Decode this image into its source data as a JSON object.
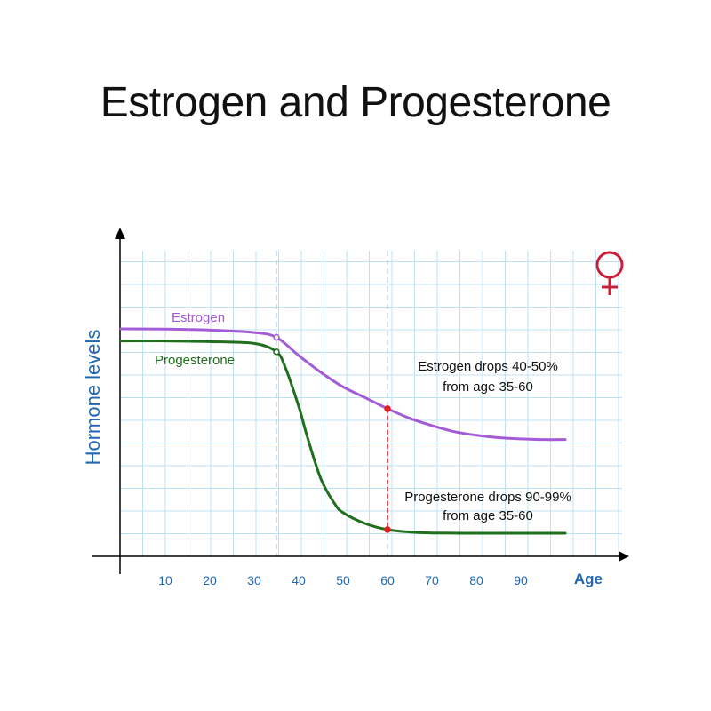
{
  "title": "Estrogen and Progesterone",
  "colors": {
    "estrogen": "#a45cd6",
    "progesterone": "#1f6f1c",
    "axis_text": "#1f66b3",
    "grid": "#bfe0f0",
    "guide": "#9fcde6",
    "drop_line": "#e02020",
    "female_symbol": "#c8203a"
  },
  "icons": {
    "female_symbol": "female-symbol-icon"
  },
  "chart_data": {
    "type": "line",
    "title": "Estrogen and Progesterone",
    "xlabel": "Age",
    "ylabel": "Hormone levels",
    "xlim": [
      0,
      100
    ],
    "x_ticks": [
      10,
      20,
      30,
      40,
      50,
      60,
      70,
      80,
      90
    ],
    "y_ticks_labeled": false,
    "grid": true,
    "series": [
      {
        "name": "Estrogen",
        "x": [
          0,
          10,
          20,
          30,
          35,
          40,
          45,
          50,
          55,
          60,
          65,
          70,
          75,
          80,
          85,
          90,
          95,
          100
        ],
        "y": [
          100,
          99.9,
          99.5,
          98.5,
          96.5,
          89,
          82,
          76,
          71.5,
          67,
          63,
          60,
          57.5,
          56,
          55,
          54.5,
          54.2,
          54.2
        ]
      },
      {
        "name": "Progesterone",
        "x": [
          0,
          10,
          20,
          30,
          35,
          37,
          40,
          42,
          45,
          48,
          50,
          55,
          60,
          65,
          70,
          80,
          90,
          100
        ],
        "y": [
          95,
          95,
          94.7,
          94,
          90.5,
          84,
          68,
          55,
          38,
          28,
          24,
          19.5,
          17,
          16,
          15.6,
          15.5,
          15.5,
          15.5
        ]
      }
    ],
    "annotations": [
      {
        "text_lines": [
          "Estrogen drops 40-50%",
          "from age 35-60"
        ]
      },
      {
        "text_lines": [
          "Progesterone drops 90-99%",
          "from age 35-60"
        ]
      }
    ],
    "reference_lines_x": [
      35,
      60
    ],
    "markers": [
      {
        "series": "Estrogen",
        "x": 35,
        "y": 96.5
      },
      {
        "series": "Progesterone",
        "x": 35,
        "y": 90.5
      },
      {
        "series": "Estrogen",
        "x": 60,
        "y": 67
      },
      {
        "series": "Progesterone",
        "x": 60,
        "y": 17
      }
    ]
  }
}
